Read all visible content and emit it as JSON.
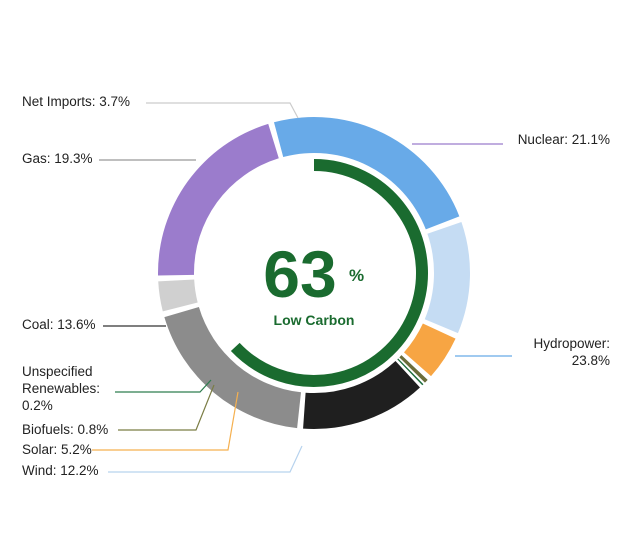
{
  "chart_data": {
    "type": "pie",
    "style": "donut",
    "slices": [
      {
        "label": "Nuclear: 21.1%",
        "value": 21.1,
        "color": "#9b7ccc",
        "line_color": "#9b7ccc"
      },
      {
        "label": "Hydropower: 23.8%",
        "value": 23.8,
        "color": "#68aae8",
        "line_color": "#68aae8"
      },
      {
        "label": "Wind: 12.2%",
        "value": 12.2,
        "color": "#c5dcf3",
        "line_color": "#b7d3ee"
      },
      {
        "label": "Solar: 5.2%",
        "value": 5.2,
        "color": "#f7a543",
        "line_color": "#f5b04f"
      },
      {
        "label": "Biofuels: 0.8%",
        "value": 0.8,
        "color": "#6b6d3b",
        "line_color": "#7b7d45"
      },
      {
        "label": "Unspecified Renewables: 0.2%",
        "value": 0.2,
        "color": "#1b6b3a",
        "line_color": "#2e7d4f"
      },
      {
        "label": "Coal: 13.6%",
        "value": 13.6,
        "color": "#1f1f1f",
        "line_color": "#333333"
      },
      {
        "label": "Gas: 19.3%",
        "value": 19.3,
        "color": "#8c8c8c",
        "line_color": "#999999"
      },
      {
        "label": "Net Imports: 3.7%",
        "value": 3.7,
        "color": "#d0d0d0",
        "line_color": "#cccccc"
      }
    ],
    "center": {
      "value": "63",
      "unit": "%",
      "caption": "Low Carbon",
      "fraction": 0.63,
      "color": "#1a6b2f"
    }
  }
}
